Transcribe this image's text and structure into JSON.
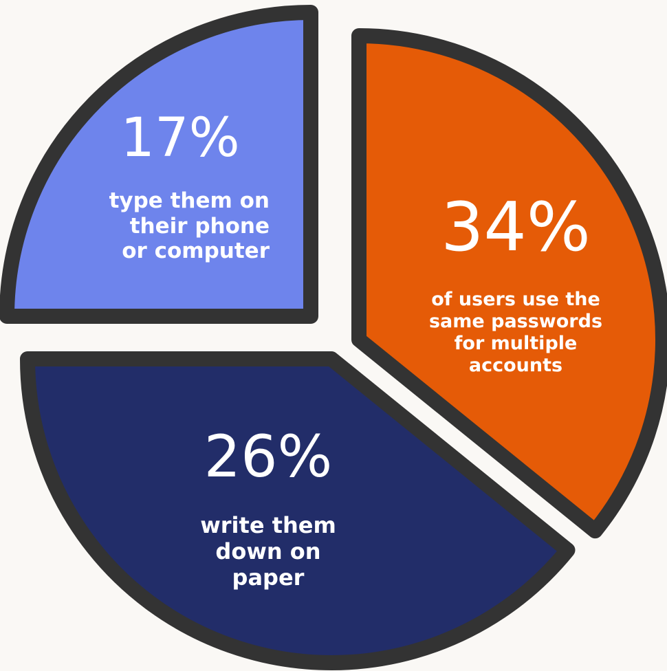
{
  "chart_data": {
    "type": "pie",
    "slices": [
      {
        "id": "orange",
        "value": 34,
        "value_label": "34%",
        "label": "of users use the same passwords for multiple accounts",
        "lines": [
          "of users use the",
          "same passwords",
          "for multiple",
          "accounts"
        ],
        "color": "#e55b07"
      },
      {
        "id": "navy",
        "value": 26,
        "value_label": "26%",
        "label": "write them down on paper",
        "lines": [
          "write them",
          "down on",
          "paper"
        ],
        "color": "#222d69"
      },
      {
        "id": "blue",
        "value": 17,
        "value_label": "17%",
        "label": "type them on their phone or computer",
        "lines": [
          "type them on",
          "their phone",
          "or computer"
        ],
        "color": "#6e84ec"
      }
    ],
    "outline_color": "#333333",
    "background": "#faf8f5"
  }
}
